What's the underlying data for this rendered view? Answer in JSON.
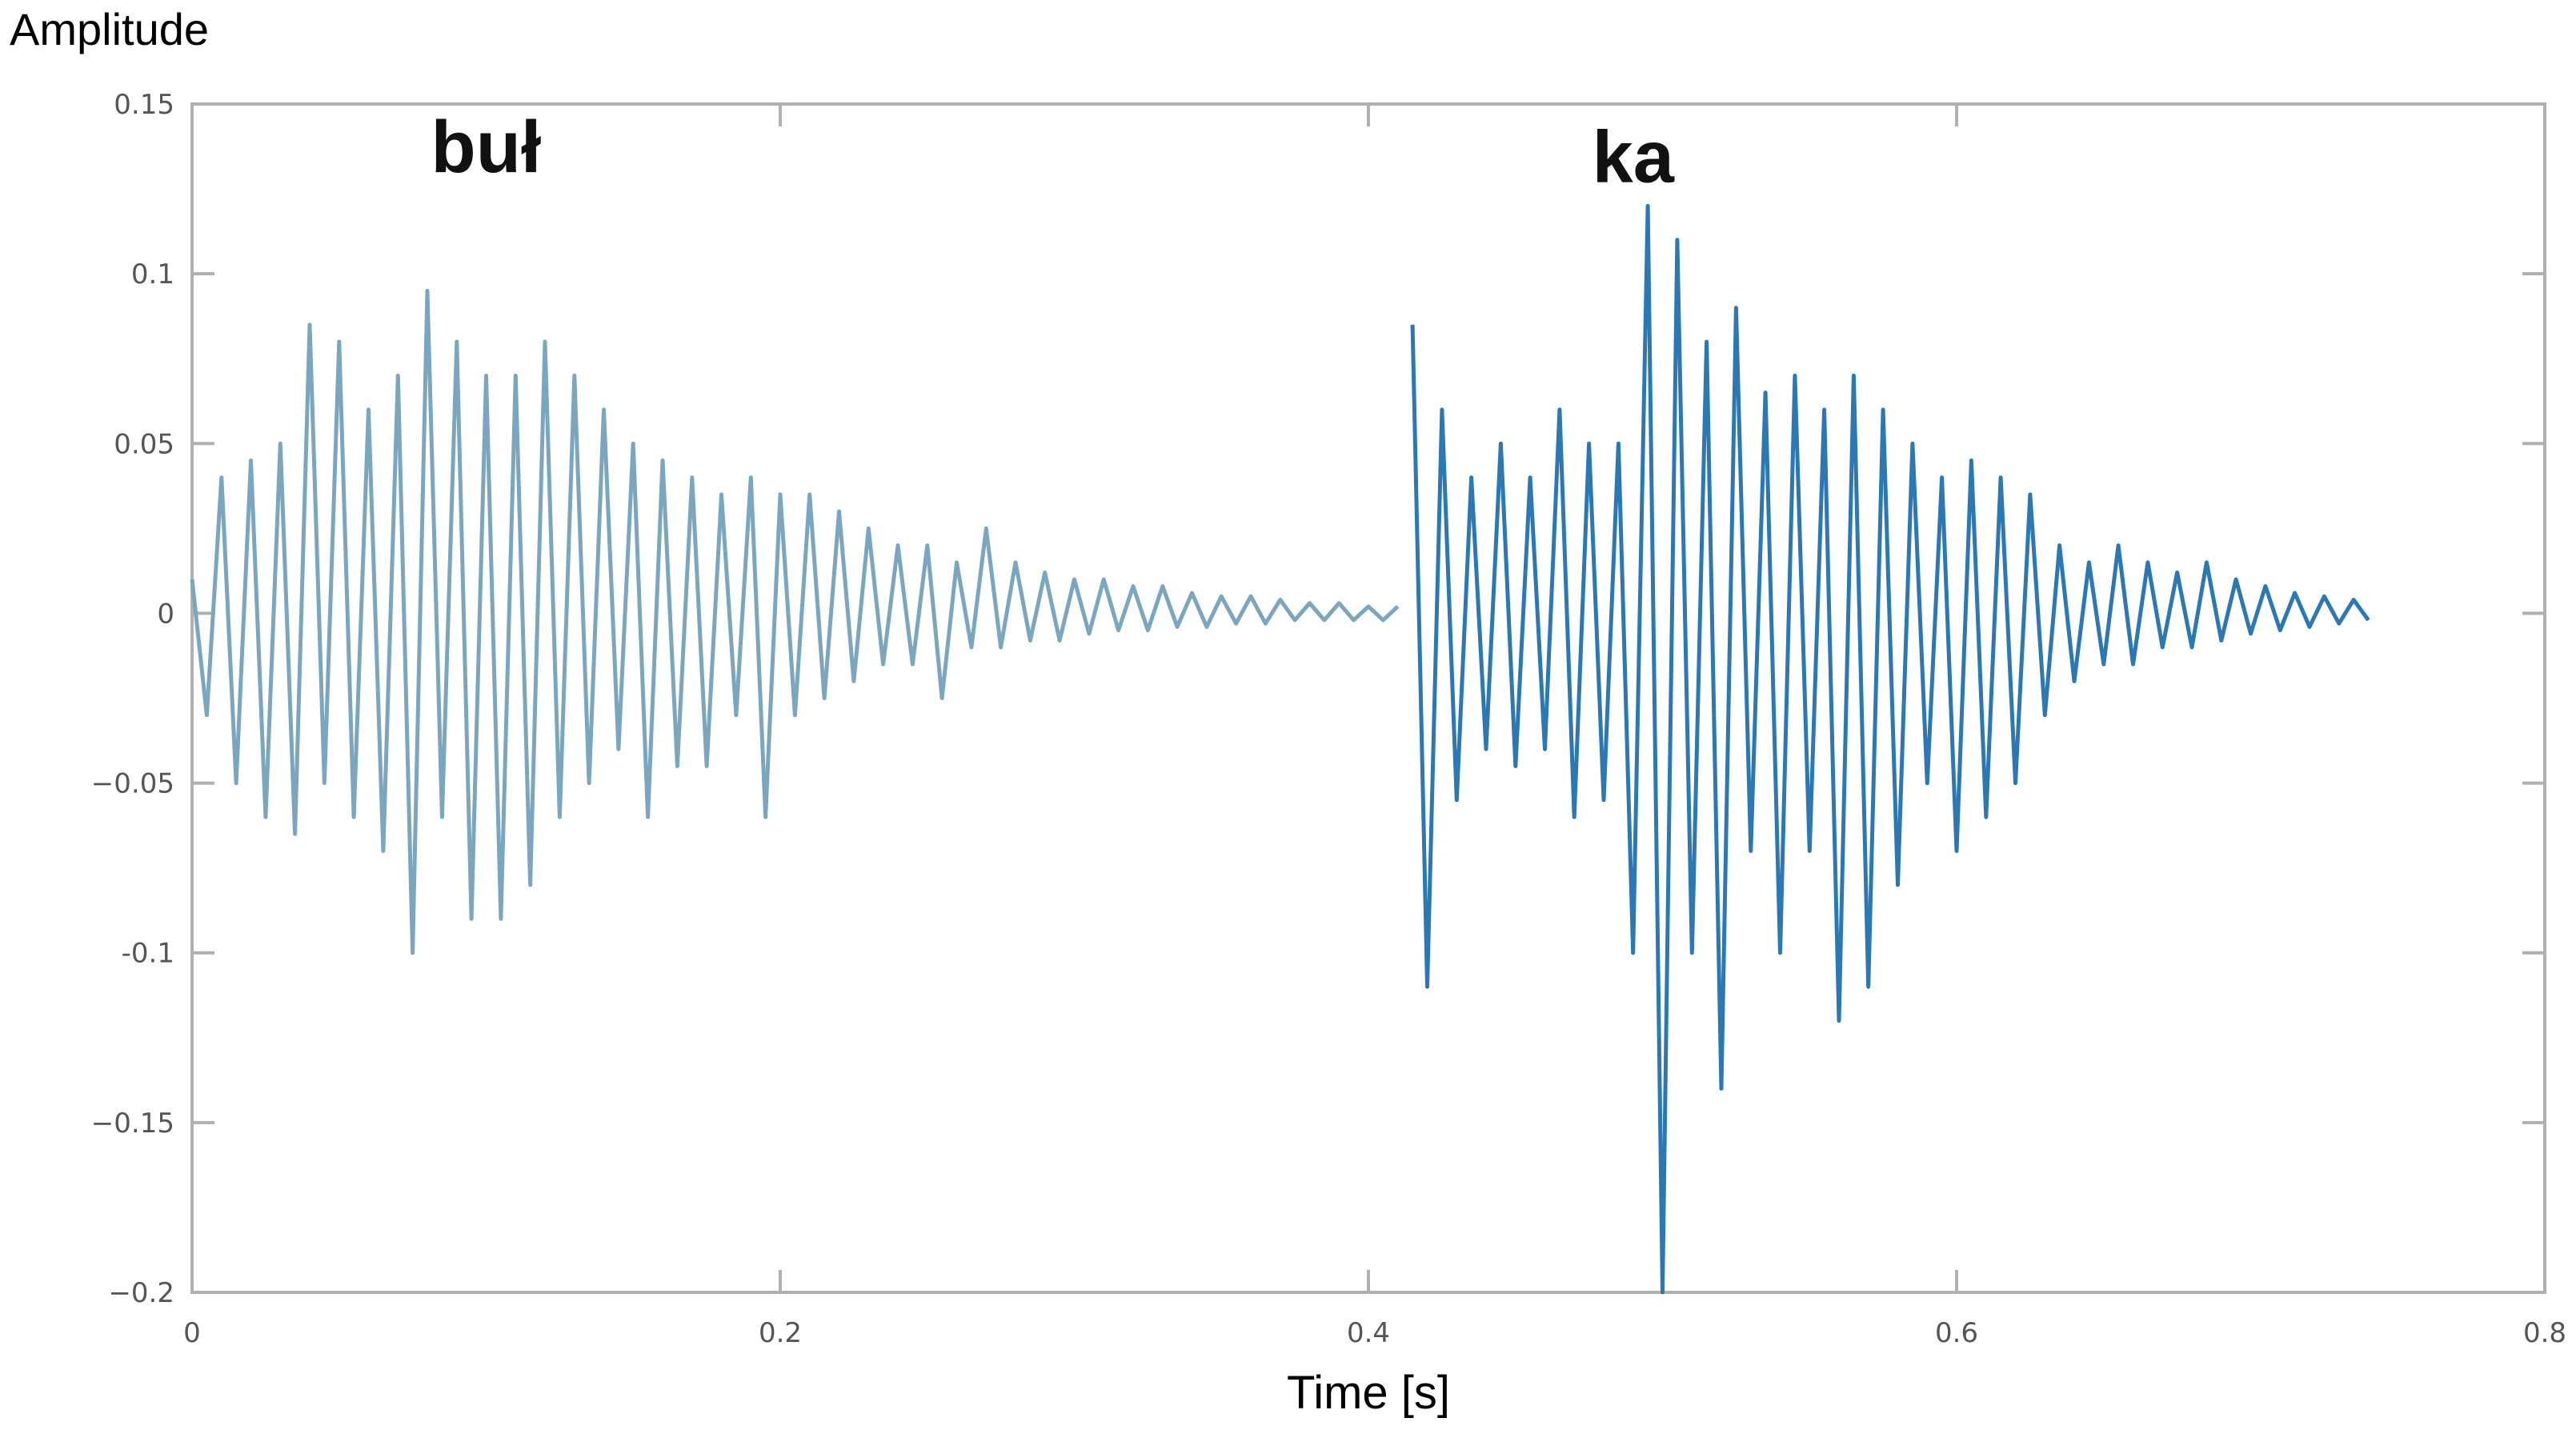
{
  "chart_data": {
    "type": "line",
    "title": "",
    "xlabel": "Time [s]",
    "ylabel": "Amplitude",
    "xlim": [
      0,
      0.8
    ],
    "ylim": [
      -0.2,
      0.15
    ],
    "xticks": [
      0,
      0.2,
      0.4,
      0.6,
      0.8
    ],
    "xtick_labels": [
      "0",
      "0.2",
      "0.4",
      "0.6",
      "0.8"
    ],
    "yticks": [
      0.15,
      0.1,
      0.05,
      0,
      -0.05,
      -0.1,
      -0.15,
      -0.2
    ],
    "ytick_labels": [
      "0.15",
      "0.1",
      "0.05",
      "0",
      "−0.05",
      "-0.1",
      "−0.15",
      "−0.2"
    ],
    "grid": false,
    "annotations": [
      {
        "text": "buł",
        "x": 0.1,
        "y": 0.13
      },
      {
        "text": "ka",
        "x": 0.49,
        "y": 0.127
      }
    ],
    "colors": {
      "first_syllable": "#7aa7bf",
      "second_syllable": "#2a78b4",
      "axes": "#b0b0b0"
    },
    "series": [
      {
        "x": [
          0,
          0.005,
          0.01,
          0.015,
          0.02,
          0.025,
          0.03,
          0.035,
          0.04,
          0.045,
          0.05,
          0.055,
          0.06,
          0.065,
          0.07,
          0.075,
          0.08,
          0.085,
          0.09,
          0.095,
          0.1,
          0.105,
          0.11,
          0.115,
          0.12,
          0.125,
          0.13,
          0.135,
          0.14,
          0.145,
          0.15,
          0.155,
          0.16,
          0.165,
          0.17,
          0.175,
          0.18,
          0.185,
          0.19,
          0.195,
          0.2,
          0.205,
          0.21,
          0.215,
          0.22,
          0.225,
          0.23,
          0.235,
          0.24,
          0.245,
          0.25,
          0.255,
          0.26,
          0.265,
          0.27,
          0.275,
          0.28,
          0.285,
          0.29,
          0.295,
          0.3,
          0.305,
          0.31,
          0.315,
          0.32,
          0.325,
          0.33,
          0.335,
          0.34,
          0.345,
          0.35,
          0.355,
          0.36,
          0.365,
          0.37,
          0.375,
          0.38,
          0.385,
          0.39,
          0.395,
          0.4,
          0.405,
          0.41
        ],
        "y": [
          0.01,
          -0.03,
          0.04,
          -0.05,
          0.045,
          -0.06,
          0.05,
          -0.065,
          0.085,
          -0.05,
          0.08,
          -0.06,
          0.06,
          -0.07,
          0.07,
          -0.1,
          0.095,
          -0.06,
          0.08,
          -0.09,
          0.07,
          -0.09,
          0.07,
          -0.08,
          0.08,
          -0.06,
          0.07,
          -0.05,
          0.06,
          -0.04,
          0.05,
          -0.06,
          0.045,
          -0.045,
          0.04,
          -0.045,
          0.035,
          -0.03,
          0.04,
          -0.06,
          0.035,
          -0.03,
          0.035,
          -0.025,
          0.03,
          -0.02,
          0.025,
          -0.015,
          0.02,
          -0.015,
          0.02,
          -0.025,
          0.015,
          -0.01,
          0.025,
          -0.01,
          0.015,
          -0.008,
          0.012,
          -0.008,
          0.01,
          -0.006,
          0.01,
          -0.005,
          0.008,
          -0.005,
          0.008,
          -0.004,
          0.006,
          -0.004,
          0.005,
          -0.003,
          0.005,
          -0.003,
          0.004,
          -0.002,
          0.003,
          -0.002,
          0.003,
          -0.002,
          0.002,
          -0.002,
          0.002
        ]
      },
      {
        "x": [
          0.415,
          0.42,
          0.425,
          0.43,
          0.435,
          0.44,
          0.445,
          0.45,
          0.455,
          0.46,
          0.465,
          0.47,
          0.475,
          0.48,
          0.485,
          0.49,
          0.495,
          0.5,
          0.505,
          0.51,
          0.515,
          0.52,
          0.525,
          0.53,
          0.535,
          0.54,
          0.545,
          0.55,
          0.555,
          0.56,
          0.565,
          0.57,
          0.575,
          0.58,
          0.585,
          0.59,
          0.595,
          0.6,
          0.605,
          0.61,
          0.615,
          0.62,
          0.625,
          0.63,
          0.635,
          0.64,
          0.645,
          0.65,
          0.655,
          0.66,
          0.665,
          0.67,
          0.675,
          0.68,
          0.685,
          0.69,
          0.695,
          0.7,
          0.705,
          0.71,
          0.715,
          0.72,
          0.725,
          0.73,
          0.735,
          0.74
        ],
        "y": [
          0.085,
          -0.11,
          0.06,
          -0.055,
          0.04,
          -0.04,
          0.05,
          -0.045,
          0.04,
          -0.04,
          0.06,
          -0.06,
          0.05,
          -0.055,
          0.05,
          -0.1,
          0.12,
          -0.2,
          0.11,
          -0.1,
          0.08,
          -0.14,
          0.09,
          -0.07,
          0.065,
          -0.1,
          0.07,
          -0.07,
          0.06,
          -0.12,
          0.07,
          -0.11,
          0.06,
          -0.08,
          0.05,
          -0.05,
          0.04,
          -0.07,
          0.045,
          -0.06,
          0.04,
          -0.05,
          0.035,
          -0.03,
          0.02,
          -0.02,
          0.015,
          -0.015,
          0.02,
          -0.015,
          0.015,
          -0.01,
          0.012,
          -0.01,
          0.015,
          -0.008,
          0.01,
          -0.006,
          0.008,
          -0.005,
          0.006,
          -0.004,
          0.005,
          -0.003,
          0.004,
          -0.002
        ]
      }
    ]
  }
}
